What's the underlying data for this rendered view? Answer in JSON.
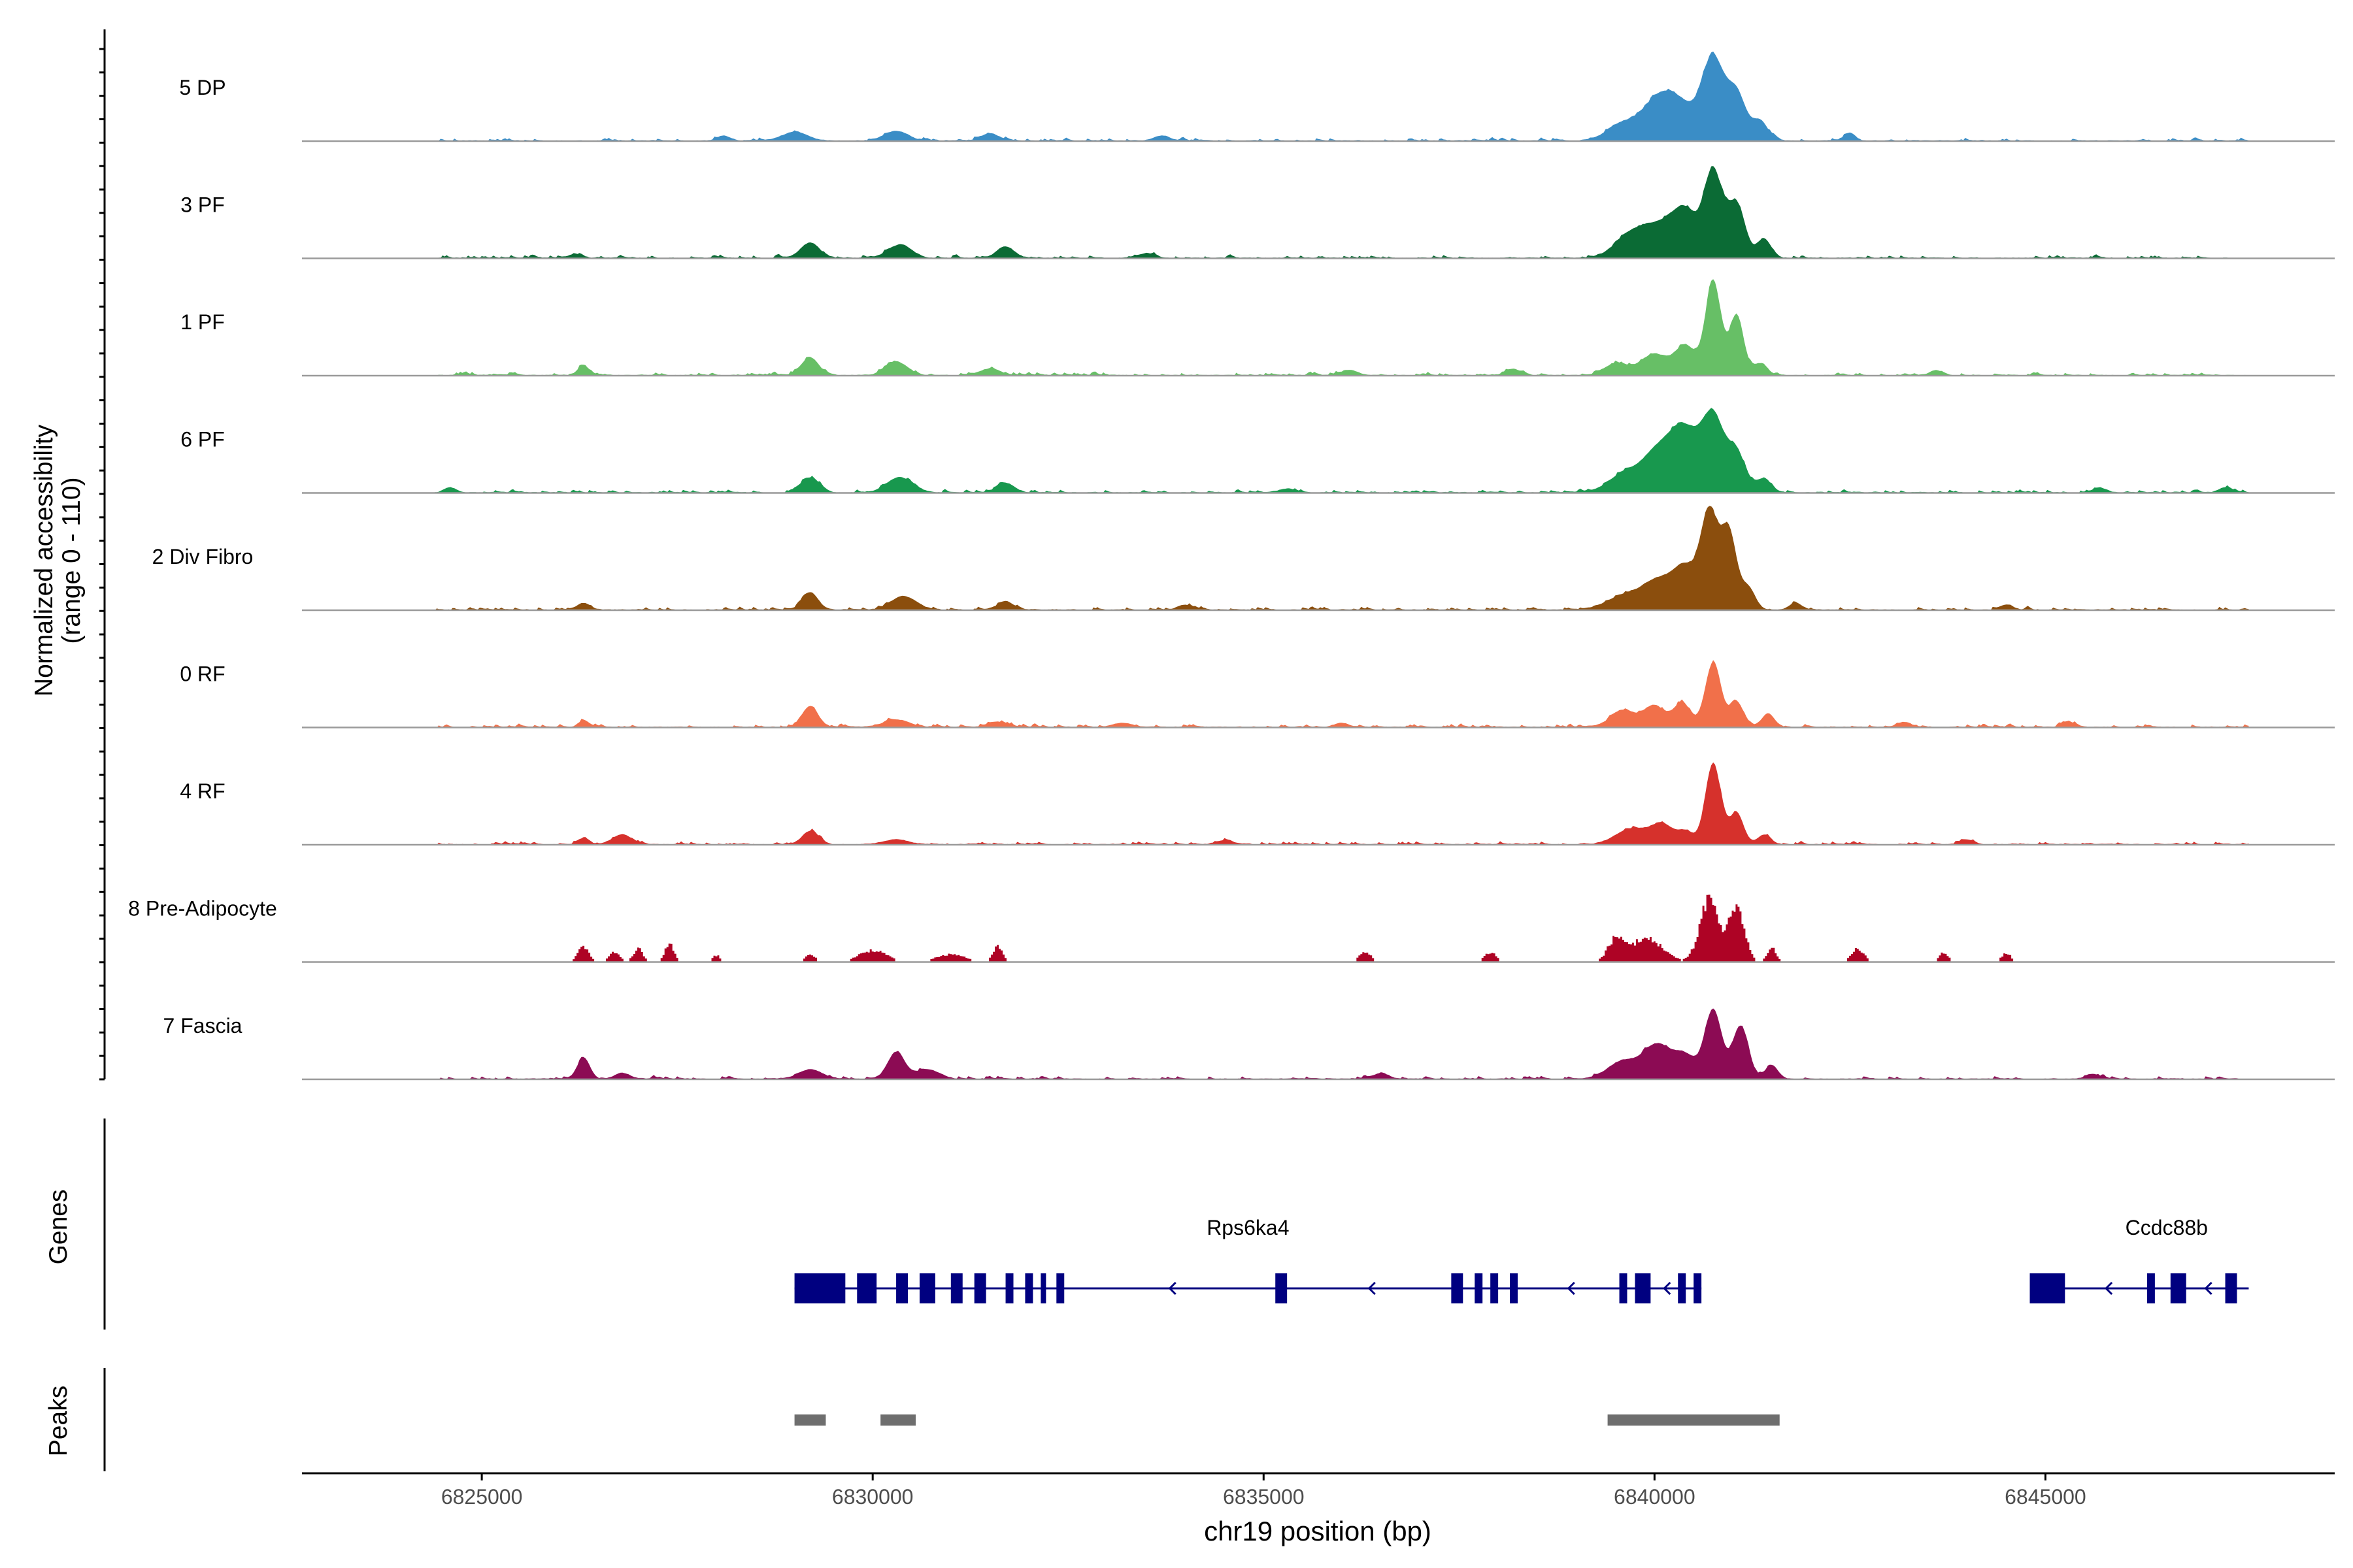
{
  "chart_data": {
    "type": "area",
    "title": "",
    "chromosome": "chr19",
    "xlabel": "chr19 position (bp)",
    "ylabel_line1": "Normalized accessibility",
    "ylabel_line2": "(range 0 - 110)",
    "xlim": [
      6822700,
      6848700
    ],
    "ylim": [
      0,
      110
    ],
    "x_ticks": [
      6825000,
      6830000,
      6835000,
      6840000,
      6845000
    ],
    "x_tick_labels": [
      "6825000",
      "6830000",
      "6835000",
      "6840000",
      "6845000"
    ],
    "track_range": [
      6824400,
      6847600
    ],
    "tracks": [
      {
        "name": "5 DP",
        "color": "#3a8dc6",
        "style": "smooth",
        "noise": 4,
        "seed": 11,
        "peaks": [
          [
            6828100,
            5,
            80
          ],
          [
            6829000,
            9,
            160
          ],
          [
            6830300,
            10,
            150
          ],
          [
            6831500,
            7,
            120
          ],
          [
            6833700,
            5,
            100
          ],
          [
            6839600,
            18,
            200
          ],
          [
            6840000,
            28,
            180
          ],
          [
            6840300,
            40,
            220
          ],
          [
            6840750,
            82,
            140
          ],
          [
            6841050,
            48,
            120
          ],
          [
            6841350,
            20,
            100
          ],
          [
            6842500,
            7,
            70
          ]
        ]
      },
      {
        "name": "3 PF",
        "color": "#0b6b35",
        "style": "smooth",
        "noise": 4,
        "seed": 23,
        "peaks": [
          [
            6826200,
            4,
            80
          ],
          [
            6829200,
            16,
            120
          ],
          [
            6830350,
            14,
            150
          ],
          [
            6831700,
            12,
            110
          ],
          [
            6833500,
            5,
            100
          ],
          [
            6839700,
            25,
            200
          ],
          [
            6840100,
            32,
            200
          ],
          [
            6840400,
            42,
            150
          ],
          [
            6840750,
            90,
            120
          ],
          [
            6841050,
            55,
            110
          ],
          [
            6841400,
            20,
            90
          ]
        ]
      },
      {
        "name": "1 PF",
        "color": "#67bf66",
        "style": "smooth",
        "noise": 4,
        "seed": 37,
        "peaks": [
          [
            6826300,
            10,
            70
          ],
          [
            6829200,
            18,
            110
          ],
          [
            6830300,
            14,
            140
          ],
          [
            6831500,
            7,
            120
          ],
          [
            6836100,
            5,
            100
          ],
          [
            6838200,
            6,
            100
          ],
          [
            6839500,
            12,
            150
          ],
          [
            6840000,
            22,
            180
          ],
          [
            6840400,
            30,
            130
          ],
          [
            6840750,
            98,
            100
          ],
          [
            6841050,
            62,
            90
          ],
          [
            6841350,
            12,
            90
          ],
          [
            6843600,
            5,
            80
          ]
        ]
      },
      {
        "name": "6 PF",
        "color": "#18984e",
        "style": "smooth",
        "noise": 4,
        "seed": 41,
        "peaks": [
          [
            6824600,
            5,
            80
          ],
          [
            6829200,
            15,
            120
          ],
          [
            6830350,
            16,
            160
          ],
          [
            6831700,
            10,
            110
          ],
          [
            6835300,
            4,
            100
          ],
          [
            6839600,
            18,
            200
          ],
          [
            6840050,
            42,
            210
          ],
          [
            6840400,
            58,
            180
          ],
          [
            6840750,
            75,
            140
          ],
          [
            6841050,
            40,
            120
          ],
          [
            6841400,
            14,
            90
          ],
          [
            6845700,
            5,
            80
          ],
          [
            6847300,
            5,
            80
          ]
        ]
      },
      {
        "name": "2 Div Fibro",
        "color": "#8b4e0d",
        "style": "smooth",
        "noise": 4,
        "seed": 53,
        "peaks": [
          [
            6826300,
            7,
            80
          ],
          [
            6829200,
            18,
            100
          ],
          [
            6830400,
            14,
            160
          ],
          [
            6831700,
            8,
            110
          ],
          [
            6834000,
            5,
            100
          ],
          [
            6839600,
            14,
            220
          ],
          [
            6840050,
            30,
            200
          ],
          [
            6840400,
            40,
            150
          ],
          [
            6840700,
            98,
            110
          ],
          [
            6840950,
            80,
            100
          ],
          [
            6841200,
            22,
            90
          ],
          [
            6841800,
            7,
            80
          ],
          [
            6844500,
            5,
            80
          ]
        ]
      },
      {
        "name": "0 RF",
        "color": "#f1704a",
        "style": "smooth",
        "noise": 4,
        "seed": 67,
        "peaks": [
          [
            6826300,
            6,
            70
          ],
          [
            6829200,
            22,
            100
          ],
          [
            6830300,
            8,
            160
          ],
          [
            6831600,
            5,
            120
          ],
          [
            6833200,
            4,
            120
          ],
          [
            6836000,
            4,
            100
          ],
          [
            6839600,
            18,
            160
          ],
          [
            6840000,
            22,
            130
          ],
          [
            6840350,
            25,
            110
          ],
          [
            6840750,
            68,
            100
          ],
          [
            6841050,
            25,
            90
          ],
          [
            6841450,
            14,
            80
          ],
          [
            6843200,
            5,
            80
          ],
          [
            6845300,
            5,
            80
          ]
        ]
      },
      {
        "name": "4 RF",
        "color": "#d6312c",
        "style": "smooth",
        "noise": 4,
        "seed": 79,
        "peaks": [
          [
            6826300,
            6,
            70
          ],
          [
            6826800,
            10,
            120
          ],
          [
            6829200,
            14,
            100
          ],
          [
            6830300,
            5,
            150
          ],
          [
            6834500,
            4,
            100
          ],
          [
            6839700,
            16,
            200
          ],
          [
            6840100,
            20,
            150
          ],
          [
            6840400,
            12,
            100
          ],
          [
            6840750,
            85,
            100
          ],
          [
            6841050,
            32,
            90
          ],
          [
            6841400,
            10,
            80
          ],
          [
            6844000,
            5,
            80
          ]
        ]
      },
      {
        "name": "8 Pre-Adipocyte",
        "color": "#ae0325",
        "style": "blocky",
        "noise": 0,
        "seed": 83,
        "peaks": [
          [
            6826300,
            16,
            70
          ],
          [
            6826700,
            10,
            70
          ],
          [
            6827000,
            14,
            60
          ],
          [
            6827400,
            18,
            60
          ],
          [
            6828000,
            7,
            50
          ],
          [
            6829200,
            9,
            60
          ],
          [
            6830000,
            12,
            180
          ],
          [
            6831000,
            8,
            180
          ],
          [
            6831600,
            16,
            60
          ],
          [
            6836300,
            10,
            80
          ],
          [
            6837900,
            10,
            80
          ],
          [
            6839500,
            22,
            100
          ],
          [
            6839900,
            25,
            200
          ],
          [
            6840700,
            65,
            120
          ],
          [
            6841050,
            60,
            100
          ],
          [
            6841500,
            14,
            60
          ],
          [
            6842600,
            14,
            80
          ],
          [
            6843700,
            10,
            60
          ],
          [
            6844500,
            9,
            60
          ]
        ]
      },
      {
        "name": "7 Fascia",
        "color": "#8c0b54",
        "style": "smooth",
        "noise": 4,
        "seed": 97,
        "peaks": [
          [
            6826300,
            22,
            80
          ],
          [
            6826800,
            6,
            100
          ],
          [
            6829200,
            10,
            150
          ],
          [
            6830300,
            28,
            110
          ],
          [
            6830700,
            10,
            150
          ],
          [
            6836500,
            6,
            100
          ],
          [
            6839600,
            18,
            200
          ],
          [
            6840050,
            35,
            180
          ],
          [
            6840400,
            22,
            130
          ],
          [
            6840750,
            72,
            110
          ],
          [
            6841100,
            55,
            100
          ],
          [
            6841500,
            14,
            80
          ],
          [
            6845600,
            5,
            80
          ]
        ]
      }
    ],
    "gene_track_label": "Genes",
    "genes": [
      {
        "name": "Rps6ka4",
        "strand": "-",
        "start": 6829000,
        "end": 6840600,
        "exons": [
          [
            6829000,
            6829650
          ],
          [
            6829800,
            6830050
          ],
          [
            6830300,
            6830450
          ],
          [
            6830600,
            6830800
          ],
          [
            6831000,
            6831150
          ],
          [
            6831300,
            6831450
          ],
          [
            6831700,
            6831800
          ],
          [
            6831950,
            6832050
          ],
          [
            6832150,
            6832200
          ],
          [
            6832350,
            6832450
          ],
          [
            6835150,
            6835300
          ],
          [
            6837400,
            6837550
          ],
          [
            6837700,
            6837800
          ],
          [
            6837900,
            6838000
          ],
          [
            6838150,
            6838250
          ],
          [
            6839550,
            6839650
          ],
          [
            6839750,
            6839950
          ],
          [
            6840300,
            6840400
          ],
          [
            6840500,
            6840600
          ]
        ]
      },
      {
        "name": "Ccdc88b",
        "strand": "-",
        "start": 6844800,
        "end": 6847600,
        "exons": [
          [
            6844800,
            6845250
          ],
          [
            6846300,
            6846400
          ],
          [
            6846600,
            6846800
          ],
          [
            6847300,
            6847450
          ]
        ]
      }
    ],
    "peaks_track_label": "Peaks",
    "peak_regions": [
      [
        6829000,
        6829400
      ],
      [
        6830100,
        6830550
      ],
      [
        6839400,
        6841600
      ]
    ]
  }
}
